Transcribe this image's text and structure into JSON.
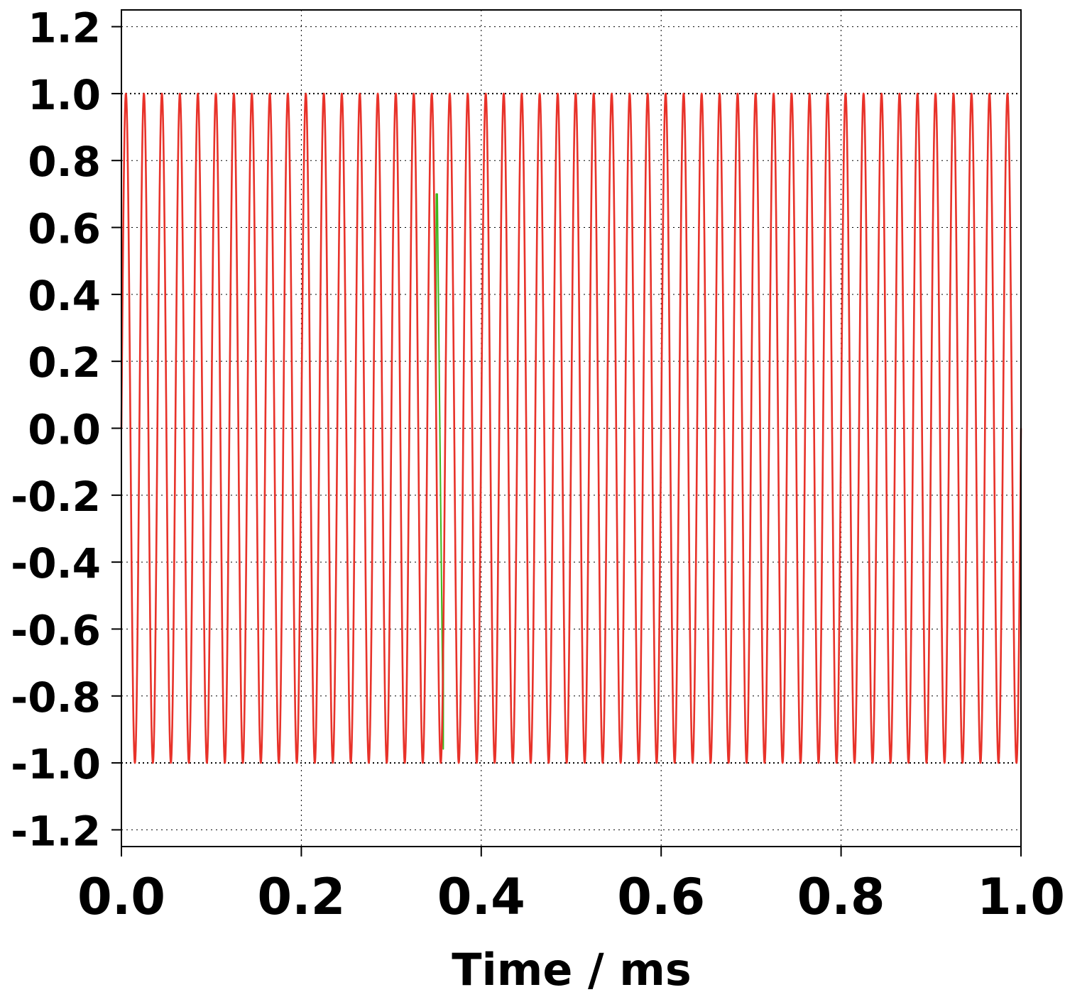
{
  "chart_data": {
    "type": "line",
    "title": "",
    "xlabel": "Time / ms",
    "ylabel": "",
    "xlim": [
      0.0,
      1.0
    ],
    "ylim": [
      -1.25,
      1.25
    ],
    "x_ticks": [
      "0.0",
      "0.2",
      "0.4",
      "0.6",
      "0.8",
      "1.0"
    ],
    "x_tick_values": [
      0.0,
      0.2,
      0.4,
      0.6,
      0.8,
      1.0
    ],
    "y_ticks": [
      "1.2",
      "1.0",
      "0.8",
      "0.6",
      "0.4",
      "0.2",
      "0.0",
      "-0.2",
      "-0.4",
      "-0.6",
      "-0.8",
      "-1.0",
      "-1.2"
    ],
    "y_tick_values": [
      1.2,
      1.0,
      0.8,
      0.6,
      0.4,
      0.2,
      0.0,
      -0.2,
      -0.4,
      -0.6,
      -0.8,
      -1.0,
      -1.2
    ],
    "grid": true,
    "legend": "none",
    "series": [
      {
        "color": "#3cb81e",
        "kind": "sine",
        "amplitude": 1.0,
        "frequency_khz": 50,
        "x_range": [
          0.0,
          1.0
        ],
        "phase_glitch": {
          "at": 0.35,
          "until": 0.358,
          "note": "brief transient reaching about 0.7 then -1.0"
        }
      },
      {
        "color": "#e8322a",
        "kind": "sine",
        "amplitude": 1.0,
        "frequency_khz": 50,
        "x_range": [
          0.0,
          1.0
        ]
      }
    ]
  }
}
